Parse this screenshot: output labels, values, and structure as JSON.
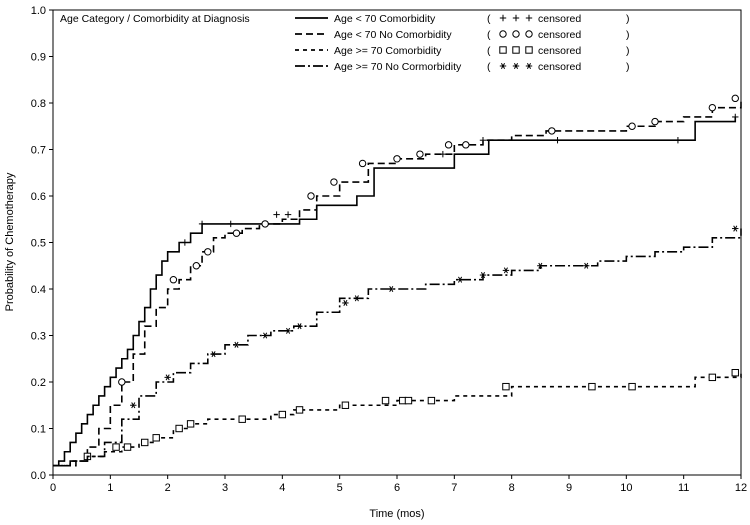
{
  "chart_data": {
    "type": "line",
    "xlabel": "Time (mos)",
    "ylabel": "Probability of Chemotherapy",
    "xlim": [
      0,
      12
    ],
    "ylim": [
      0,
      1.0
    ],
    "x_ticks": [
      "0",
      "1",
      "2",
      "3",
      "4",
      "5",
      "6",
      "7",
      "8",
      "9",
      "10",
      "11",
      "12"
    ],
    "y_ticks": [
      "0.0",
      "0.1",
      "0.2",
      "0.3",
      "0.4",
      "0.5",
      "0.6",
      "0.7",
      "0.8",
      "0.9",
      "1.0"
    ],
    "grid": false,
    "legend": {
      "title": "Age Category / Comorbidity at Diagnosis",
      "placement": "top",
      "censored_label": "censored"
    },
    "series": [
      {
        "name": "Age < 70 Comorbidity",
        "line_style": "solid",
        "censor_marker": "plus",
        "censor_symbols": "+ + +",
        "x": [
          0,
          0.1,
          0.2,
          0.3,
          0.4,
          0.5,
          0.6,
          0.7,
          0.8,
          0.9,
          1.0,
          1.1,
          1.2,
          1.3,
          1.4,
          1.5,
          1.6,
          1.7,
          1.8,
          1.9,
          2.0,
          2.2,
          2.4,
          2.6,
          2.8,
          3.0,
          3.3,
          3.6,
          4.0,
          4.3,
          4.6,
          5.0,
          5.3,
          5.6,
          6.0,
          6.3,
          6.6,
          7.0,
          7.4,
          7.6,
          8.0,
          8.5,
          9.0,
          9.5,
          10.0,
          10.5,
          11.0,
          11.2,
          11.6,
          11.9
        ],
        "y": [
          0.02,
          0.03,
          0.05,
          0.07,
          0.09,
          0.11,
          0.13,
          0.15,
          0.17,
          0.19,
          0.21,
          0.23,
          0.25,
          0.27,
          0.3,
          0.33,
          0.36,
          0.4,
          0.43,
          0.46,
          0.48,
          0.5,
          0.52,
          0.54,
          0.54,
          0.54,
          0.54,
          0.54,
          0.54,
          0.55,
          0.58,
          0.58,
          0.6,
          0.66,
          0.66,
          0.66,
          0.66,
          0.69,
          0.69,
          0.72,
          0.72,
          0.72,
          0.72,
          0.72,
          0.72,
          0.72,
          0.72,
          0.76,
          0.76,
          0.77
        ],
        "censored_x": [
          2.3,
          2.6,
          3.1,
          3.9,
          4.1,
          6.8,
          7.5,
          8.8,
          10.9,
          11.9
        ],
        "censored_y": [
          0.5,
          0.54,
          0.54,
          0.56,
          0.56,
          0.69,
          0.72,
          0.72,
          0.72,
          0.77
        ]
      },
      {
        "name": "Age < 70 No Comorbidity",
        "line_style": "dashed",
        "censor_marker": "circle",
        "censor_symbols": "○ ○ ○",
        "x": [
          0,
          0.2,
          0.4,
          0.6,
          0.8,
          1.0,
          1.2,
          1.4,
          1.6,
          1.8,
          2.0,
          2.2,
          2.4,
          2.6,
          2.8,
          3.0,
          3.3,
          3.6,
          4.0,
          4.3,
          4.6,
          5.0,
          5.5,
          6.0,
          6.5,
          7.0,
          7.5,
          8.0,
          8.6,
          9.0,
          9.5,
          10.0,
          10.5,
          11.0,
          11.5,
          12.0
        ],
        "y": [
          0.02,
          0.02,
          0.03,
          0.06,
          0.1,
          0.15,
          0.2,
          0.26,
          0.32,
          0.36,
          0.4,
          0.42,
          0.45,
          0.48,
          0.51,
          0.52,
          0.53,
          0.54,
          0.55,
          0.57,
          0.6,
          0.63,
          0.67,
          0.68,
          0.69,
          0.71,
          0.72,
          0.73,
          0.74,
          0.74,
          0.74,
          0.75,
          0.76,
          0.77,
          0.79,
          0.81
        ],
        "censored_x": [
          1.2,
          2.1,
          2.5,
          2.7,
          3.2,
          3.7,
          4.5,
          4.9,
          5.4,
          6.0,
          6.4,
          6.9,
          7.2,
          8.7,
          10.1,
          10.5,
          11.5,
          11.9
        ],
        "censored_y": [
          0.2,
          0.42,
          0.45,
          0.48,
          0.52,
          0.54,
          0.6,
          0.63,
          0.67,
          0.68,
          0.69,
          0.71,
          0.71,
          0.74,
          0.75,
          0.76,
          0.79,
          0.81
        ]
      },
      {
        "name": "Age >= 70 Comorbidity",
        "line_style": "short-dash",
        "censor_marker": "square",
        "censor_symbols": "□ □ □",
        "x": [
          0,
          0.3,
          0.6,
          0.9,
          1.2,
          1.5,
          1.8,
          2.1,
          2.4,
          2.7,
          3.0,
          3.4,
          3.8,
          4.2,
          4.6,
          5.0,
          5.5,
          6.0,
          6.5,
          7.0,
          7.5,
          8.0,
          8.5,
          9.0,
          9.5,
          10.0,
          10.5,
          11.0,
          11.2,
          11.6,
          12.0
        ],
        "y": [
          0.02,
          0.03,
          0.04,
          0.05,
          0.06,
          0.07,
          0.08,
          0.1,
          0.11,
          0.12,
          0.12,
          0.12,
          0.13,
          0.14,
          0.14,
          0.15,
          0.15,
          0.16,
          0.16,
          0.17,
          0.17,
          0.19,
          0.19,
          0.19,
          0.19,
          0.19,
          0.19,
          0.19,
          0.21,
          0.21,
          0.22
        ],
        "censored_x": [
          0.6,
          1.1,
          1.3,
          1.6,
          1.8,
          2.2,
          2.4,
          3.3,
          4.0,
          4.3,
          5.1,
          5.8,
          6.1,
          6.2,
          6.6,
          7.9,
          9.4,
          10.1,
          11.5,
          11.9
        ],
        "censored_y": [
          0.04,
          0.06,
          0.06,
          0.07,
          0.08,
          0.1,
          0.11,
          0.12,
          0.13,
          0.14,
          0.15,
          0.16,
          0.16,
          0.16,
          0.16,
          0.19,
          0.19,
          0.19,
          0.21,
          0.22
        ]
      },
      {
        "name": "Age >= 70 No Cormorbidity",
        "line_style": "long-dash-dot",
        "censor_marker": "asterisk",
        "censor_symbols": "* * *",
        "x": [
          0,
          0.3,
          0.6,
          0.9,
          1.2,
          1.5,
          1.8,
          2.1,
          2.4,
          2.7,
          3.0,
          3.4,
          3.8,
          4.2,
          4.6,
          5.0,
          5.5,
          6.0,
          6.5,
          7.0,
          7.5,
          8.0,
          8.5,
          9.0,
          9.5,
          10.0,
          10.5,
          11.0,
          11.5,
          12.0
        ],
        "y": [
          0.02,
          0.03,
          0.04,
          0.07,
          0.12,
          0.17,
          0.2,
          0.22,
          0.24,
          0.26,
          0.28,
          0.3,
          0.31,
          0.32,
          0.35,
          0.38,
          0.4,
          0.4,
          0.41,
          0.42,
          0.43,
          0.44,
          0.45,
          0.45,
          0.46,
          0.47,
          0.48,
          0.49,
          0.51,
          0.53
        ],
        "censored_x": [
          1.4,
          2.0,
          2.8,
          3.2,
          3.7,
          4.1,
          4.3,
          5.1,
          5.3,
          5.9,
          7.1,
          7.5,
          7.9,
          8.5,
          9.3,
          11.9
        ],
        "censored_y": [
          0.15,
          0.21,
          0.26,
          0.28,
          0.3,
          0.31,
          0.32,
          0.37,
          0.38,
          0.4,
          0.42,
          0.43,
          0.44,
          0.45,
          0.45,
          0.53
        ]
      }
    ]
  }
}
